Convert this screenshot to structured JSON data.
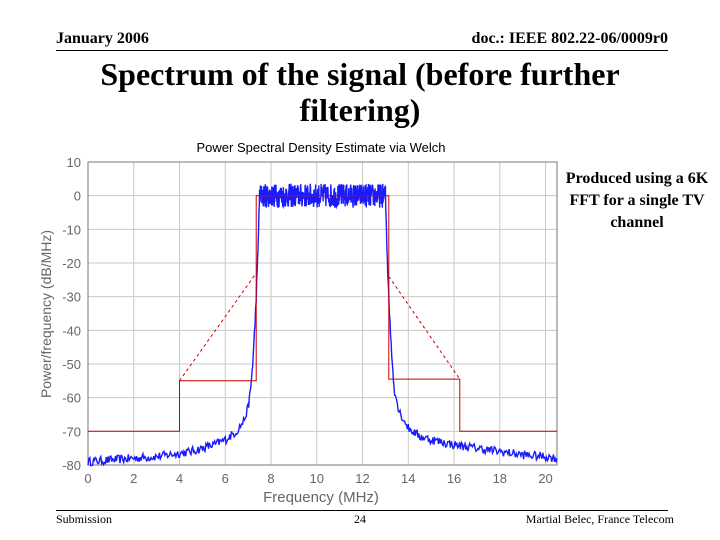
{
  "header": {
    "date": "January 2006",
    "doc": "doc.: IEEE 802.22-06/0009r0"
  },
  "slide": {
    "title": "Spectrum of the signal (before further filtering)",
    "note": "Produced using a 6K FFT for a single TV channel"
  },
  "footer": {
    "left": "Submission",
    "page": "24",
    "right": "Martial Belec, France Telecom"
  },
  "colors": {
    "signal": "#1a1aff",
    "mask": "#cc0000",
    "grid": "#c8c8c8",
    "axis_text": "#666666"
  },
  "chart_data": {
    "type": "line",
    "title": "Power Spectral Density Estimate via Welch",
    "xlabel": "Frequency (MHz)",
    "ylabel": "Power/frequency (dB/MHz)",
    "xlim": [
      0,
      20.5
    ],
    "ylim": [
      -80,
      10
    ],
    "xticks": [
      0,
      2,
      4,
      6,
      8,
      10,
      12,
      14,
      16,
      18,
      20
    ],
    "yticks": [
      10,
      0,
      -10,
      -20,
      -30,
      -40,
      -50,
      -60,
      -70,
      -80
    ],
    "grid": true,
    "series": [
      {
        "style": "signal",
        "x": [
          0,
          1,
          2,
          3,
          4,
          4.5,
          5,
          5.5,
          6,
          6.5,
          6.8,
          7.0,
          7.1,
          7.2,
          7.3,
          7.4,
          7.5,
          13.0,
          13.1,
          13.2,
          13.3,
          13.4,
          13.6,
          14,
          14.5,
          15,
          16,
          17,
          18,
          19,
          20,
          20.5
        ],
        "y": [
          -79,
          -78.5,
          -78,
          -77.5,
          -76.5,
          -76,
          -75,
          -74,
          -72.5,
          -70,
          -67,
          -63,
          -58,
          -50,
          -38,
          -22,
          0,
          0,
          -22,
          -38,
          -50,
          -58,
          -64,
          -69,
          -71.5,
          -72.5,
          -74,
          -75,
          -76,
          -77,
          -77.5,
          -78
        ]
      },
      {
        "style": "mask",
        "x": [
          0,
          4,
          4,
          7.35,
          7.35,
          13.15,
          13.15,
          16.25,
          16.25,
          20.5
        ],
        "y": [
          -70,
          -70,
          -55,
          -55,
          0,
          0,
          -54.5,
          -54.5,
          -70,
          -70
        ]
      },
      {
        "style": "mask-dashed",
        "x": [
          4,
          7.35
        ],
        "y": [
          -55,
          -23
        ]
      },
      {
        "style": "mask-dashed",
        "x": [
          13.15,
          16.25
        ],
        "y": [
          -24,
          -54.5
        ]
      }
    ]
  }
}
